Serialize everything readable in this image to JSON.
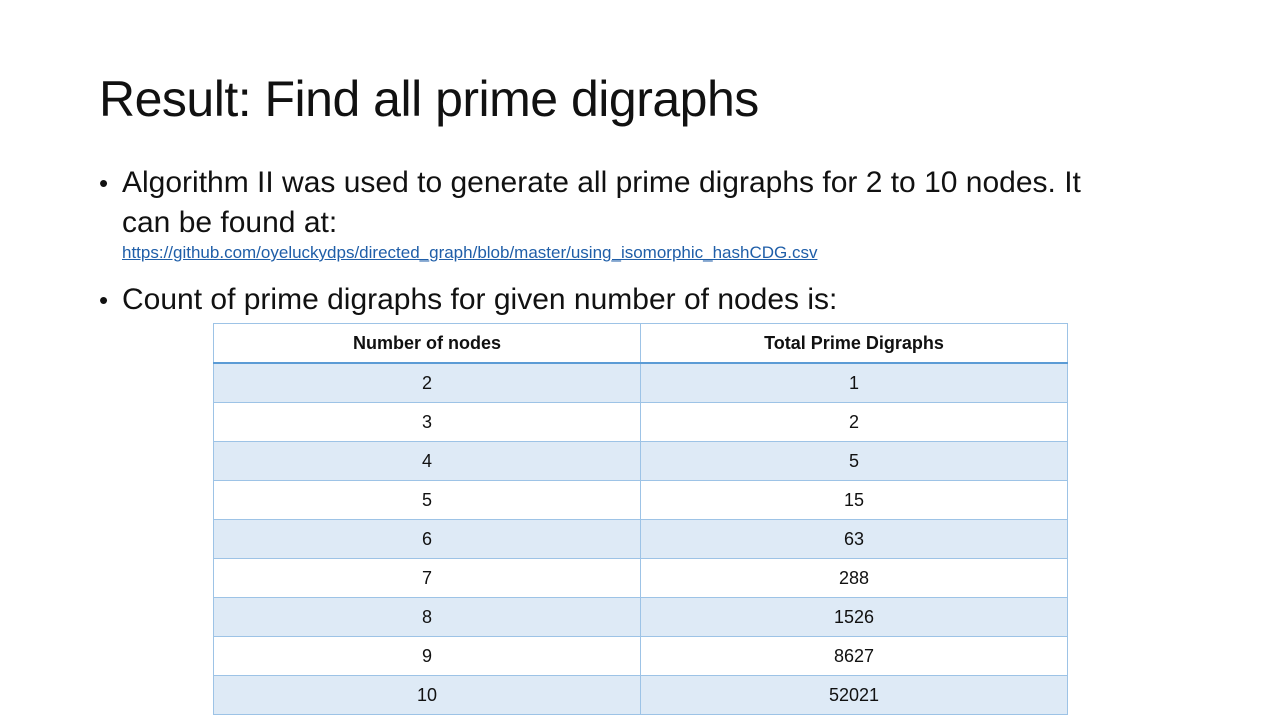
{
  "slide": {
    "title": "Result: Find all prime digraphs",
    "bullets": [
      {
        "text": "Algorithm II was used to generate all prime digraphs for 2 to 10 nodes. It can be found at:",
        "link": "https://github.com/oyeluckydps/directed_graph/blob/master/using_isomorphic_hashCDG.csv"
      },
      {
        "text": "Count of prime digraphs for given number of nodes is:"
      }
    ],
    "bullet_glyph": "•"
  },
  "table": {
    "headers": [
      "Number of nodes",
      "Total Prime Digraphs"
    ],
    "rows": [
      [
        "2",
        "1"
      ],
      [
        "3",
        "2"
      ],
      [
        "4",
        "5"
      ],
      [
        "5",
        "15"
      ],
      [
        "6",
        "63"
      ],
      [
        "7",
        "288"
      ],
      [
        "8",
        "1526"
      ],
      [
        "9",
        "8627"
      ],
      [
        "10",
        "52021"
      ]
    ]
  },
  "colors": {
    "link": "#1f5ea8",
    "table_border": "#9dc3e6",
    "table_header_rule": "#5b9bd5",
    "table_band": "#deeaf6"
  }
}
